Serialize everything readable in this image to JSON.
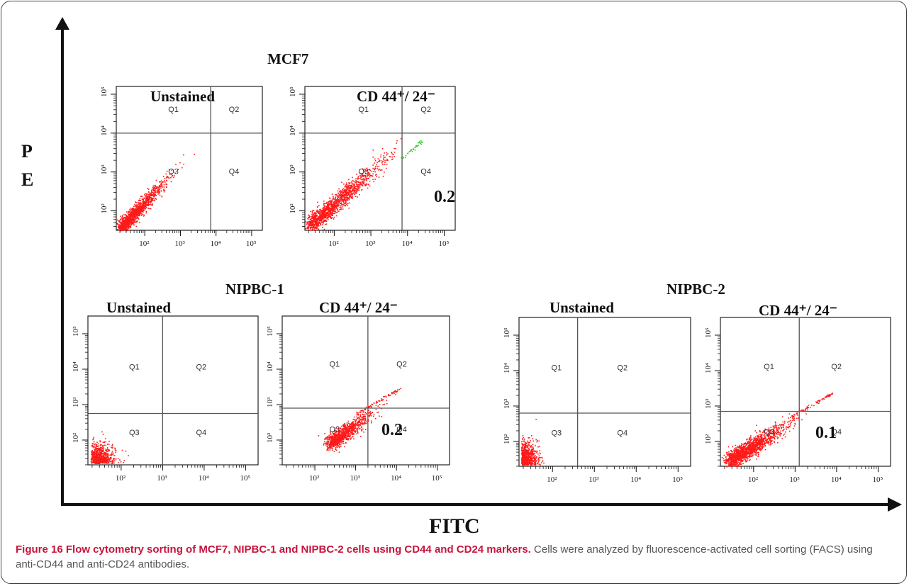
{
  "figure": {
    "y_axis_label_line1": "P",
    "y_axis_label_line2": "E",
    "x_axis_label": "FITC",
    "caption_label": "Figure 16",
    "caption_title": "Flow cytometry sorting of MCF7, NIPBC-1 and NIPBC-2 cells using CD44 and CD24 markers.",
    "caption_text": "Cells were analyzed by fluorescence-activated cell sorting (FACS) using anti-CD44 and anti-CD24 antibodies."
  },
  "groups": [
    {
      "name": "MCF7"
    },
    {
      "name": "NIPBC-1"
    },
    {
      "name": "NIPBC-2"
    }
  ],
  "colors": {
    "dots": "#ff1a1a",
    "gate_dots": "#33cc33",
    "axis": "#111111",
    "gate": "#666666",
    "caption_label": "#c8143c"
  },
  "chart_data": [
    {
      "type": "scatter",
      "group": "MCF7",
      "title": "Unstained",
      "x_ticks": [
        "10²",
        "10³",
        "10⁴",
        "10⁵"
      ],
      "y_ticks": [
        "10²",
        "10³",
        "10⁴",
        "10⁵"
      ],
      "xlim": [
        1.2,
        5.3
      ],
      "ylim": [
        1.5,
        5.2
      ],
      "gate": {
        "x": 3.85,
        "y": 4.0
      },
      "quadrants": [
        "Q1",
        "Q2",
        "Q3",
        "Q4"
      ],
      "annotation": "",
      "scale": "log"
    },
    {
      "type": "scatter",
      "group": "MCF7",
      "title": "CD 44⁺/ 24⁻",
      "x_ticks": [
        "10²",
        "10³",
        "10⁴",
        "10⁵"
      ],
      "y_ticks": [
        "10²",
        "10³",
        "10⁴",
        "10⁵"
      ],
      "xlim": [
        1.2,
        5.3
      ],
      "ylim": [
        1.5,
        5.2
      ],
      "gate": {
        "x": 3.85,
        "y": 4.0
      },
      "quadrants": [
        "Q1",
        "Q2",
        "Q3",
        "Q4"
      ],
      "annotation": "0.2",
      "scale": "log"
    },
    {
      "type": "scatter",
      "group": "NIPBC-1",
      "title": "Unstained",
      "x_ticks": [
        "10²",
        "10³",
        "10⁴",
        "10⁵"
      ],
      "y_ticks": [
        "10²",
        "10³",
        "10⁴",
        "10⁵"
      ],
      "xlim": [
        1.2,
        5.3
      ],
      "ylim": [
        1.3,
        5.5
      ],
      "gate": {
        "x": 3.0,
        "y": 2.75
      },
      "quadrants": [
        "Q1",
        "Q2",
        "Q3",
        "Q4"
      ],
      "annotation": "",
      "scale": "log"
    },
    {
      "type": "scatter",
      "group": "NIPBC-1",
      "title": "CD 44⁺/ 24⁻",
      "x_ticks": [
        "10²",
        "10³",
        "10⁴",
        "10⁵"
      ],
      "y_ticks": [
        "10²",
        "10³",
        "10⁴",
        "10⁵"
      ],
      "xlim": [
        1.2,
        5.3
      ],
      "ylim": [
        1.3,
        5.5
      ],
      "gate": {
        "x": 3.3,
        "y": 2.9
      },
      "quadrants": [
        "Q1",
        "Q2",
        "Q3",
        "Q4"
      ],
      "annotation": "0.2",
      "scale": "log"
    },
    {
      "type": "scatter",
      "group": "NIPBC-2",
      "title": "Unstained",
      "x_ticks": [
        "10²",
        "10³",
        "10⁴",
        "10⁵"
      ],
      "y_ticks": [
        "10²",
        "10³",
        "10⁴",
        "10⁵"
      ],
      "xlim": [
        1.2,
        5.3
      ],
      "ylim": [
        1.3,
        5.5
      ],
      "gate": {
        "x": 2.6,
        "y": 2.8
      },
      "quadrants": [
        "Q1",
        "Q2",
        "Q3",
        "Q4"
      ],
      "annotation": "",
      "scale": "log"
    },
    {
      "type": "scatter",
      "group": "NIPBC-2",
      "title": "CD 44⁺/ 24⁻",
      "x_ticks": [
        "10²",
        "10³",
        "10⁴",
        "10⁵"
      ],
      "y_ticks": [
        "10²",
        "10³",
        "10⁴",
        "10⁵"
      ],
      "xlim": [
        1.2,
        5.3
      ],
      "ylim": [
        1.3,
        5.5
      ],
      "gate": {
        "x": 3.1,
        "y": 2.85
      },
      "quadrants": [
        "Q1",
        "Q2",
        "Q3",
        "Q4"
      ],
      "annotation": "0.1",
      "scale": "log"
    }
  ]
}
